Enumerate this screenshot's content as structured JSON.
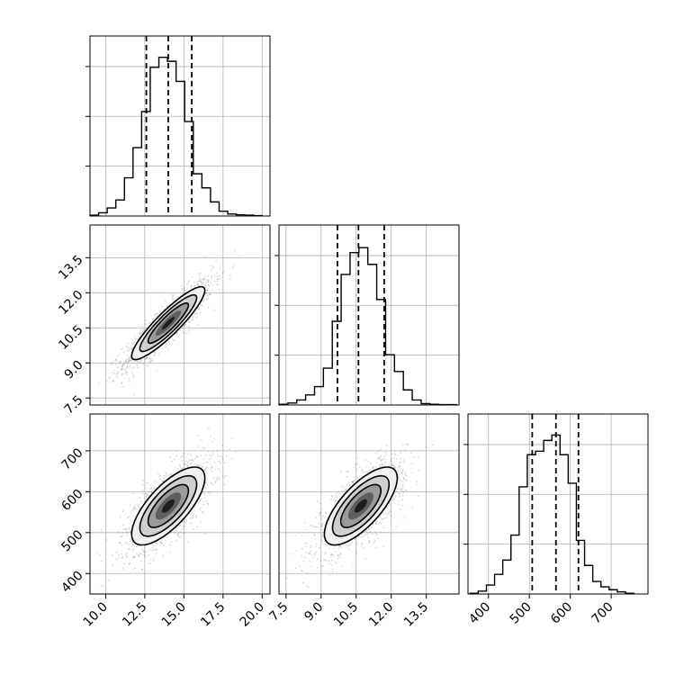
{
  "chart_data": {
    "type": "corner",
    "grid": true,
    "parameters": [
      {
        "range": [
          9.0,
          20.5
        ],
        "ticks": [
          10.0,
          12.5,
          15.0,
          17.5,
          20.0
        ],
        "tick_labels": [
          "10.0",
          "12.5",
          "15.0",
          "17.5",
          "20.0"
        ]
      },
      {
        "range": [
          7.2,
          14.9
        ],
        "ticks": [
          7.5,
          9.0,
          10.5,
          12.0,
          13.5
        ],
        "tick_labels": [
          "7.5",
          "9.0",
          "10.5",
          "12.0",
          "13.5"
        ]
      },
      {
        "range": [
          350,
          790
        ],
        "ticks": [
          400,
          500,
          600,
          700
        ],
        "tick_labels": [
          "400",
          "500",
          "600",
          "700"
        ]
      }
    ],
    "histograms": [
      {
        "parameter": 0,
        "bin_edges": [
          9.0,
          9.55,
          10.1,
          10.65,
          11.2,
          11.75,
          12.3,
          12.85,
          13.4,
          13.95,
          14.5,
          15.05,
          15.6,
          16.15,
          16.7,
          17.25,
          17.8,
          18.35,
          18.9,
          19.45,
          20.0
        ],
        "counts": [
          2,
          8,
          20,
          40,
          95,
          170,
          260,
          370,
          395,
          385,
          335,
          235,
          105,
          70,
          35,
          12,
          5,
          3,
          2,
          1
        ],
        "ymax": 400,
        "quantiles": [
          12.6,
          14.0,
          15.5
        ]
      },
      {
        "parameter": 1,
        "bin_edges": [
          7.2,
          7.58,
          7.96,
          8.34,
          8.72,
          9.1,
          9.48,
          9.86,
          10.24,
          10.62,
          11.0,
          11.38,
          11.76,
          12.14,
          12.52,
          12.9,
          13.28,
          13.66,
          14.04,
          14.42,
          14.8
        ],
        "counts": [
          2,
          6,
          15,
          30,
          55,
          110,
          250,
          390,
          455,
          470,
          420,
          315,
          150,
          100,
          45,
          15,
          4,
          2,
          1,
          1
        ],
        "ymax": 480,
        "quantiles": [
          9.7,
          10.6,
          11.7
        ]
      },
      {
        "parameter": 2,
        "bin_edges": [
          355,
          375,
          395,
          415,
          435,
          455,
          475,
          495,
          515,
          535,
          555,
          575,
          595,
          615,
          635,
          655,
          675,
          695,
          715,
          735,
          755
        ],
        "counts": [
          2,
          8,
          25,
          55,
          95,
          165,
          300,
          390,
          400,
          430,
          445,
          390,
          310,
          150,
          80,
          35,
          20,
          12,
          6,
          2
        ],
        "ymax": 450,
        "quantiles": [
          507,
          565,
          620
        ]
      }
    ],
    "joint": [
      {
        "x": 0,
        "y": 1,
        "mean": [
          14.0,
          10.7
        ],
        "sd": [
          1.35,
          0.9
        ],
        "corr": 0.9
      },
      {
        "x": 0,
        "y": 2,
        "mean": [
          14.0,
          565
        ],
        "sd": [
          1.35,
          55
        ],
        "corr": 0.72
      },
      {
        "x": 1,
        "y": 2,
        "mean": [
          10.7,
          565
        ],
        "sd": [
          0.9,
          55
        ],
        "corr": 0.72
      }
    ]
  }
}
